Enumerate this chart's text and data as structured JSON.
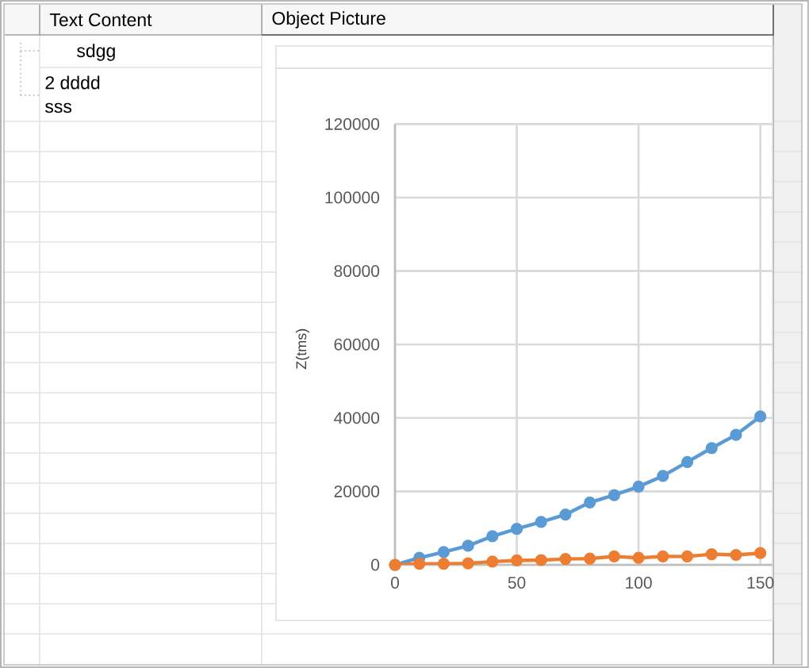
{
  "chart_data": {
    "type": "line",
    "ylabel": "Z(tms)",
    "x": [
      0,
      10,
      20,
      30,
      40,
      50,
      60,
      70,
      80,
      90,
      100,
      110,
      120,
      130,
      140,
      150
    ],
    "series": [
      {
        "color": "#5b9bd5",
        "values": [
          0,
          1900,
          3500,
          5200,
          7800,
          9800,
          11700,
          13700,
          17000,
          19000,
          21300,
          24200,
          28000,
          31800,
          35400,
          40400
        ]
      },
      {
        "color": "#ed7d31",
        "values": [
          0,
          300,
          300,
          400,
          900,
          1200,
          1300,
          1600,
          1700,
          2300,
          1900,
          2300,
          2300,
          2900,
          2700,
          3200
        ]
      }
    ],
    "xlim": [
      0,
      155
    ],
    "ylim": [
      0,
      120000
    ],
    "xticks": [
      0,
      50,
      100,
      150
    ],
    "yticks": [
      0,
      20000,
      40000,
      60000,
      80000,
      100000,
      120000
    ],
    "grid": true,
    "marker": "circle",
    "line_style": "solid",
    "annotations": [
      "Text Content",
      "Object Picture",
      "sdgg",
      "2 dddd",
      "sss"
    ]
  }
}
